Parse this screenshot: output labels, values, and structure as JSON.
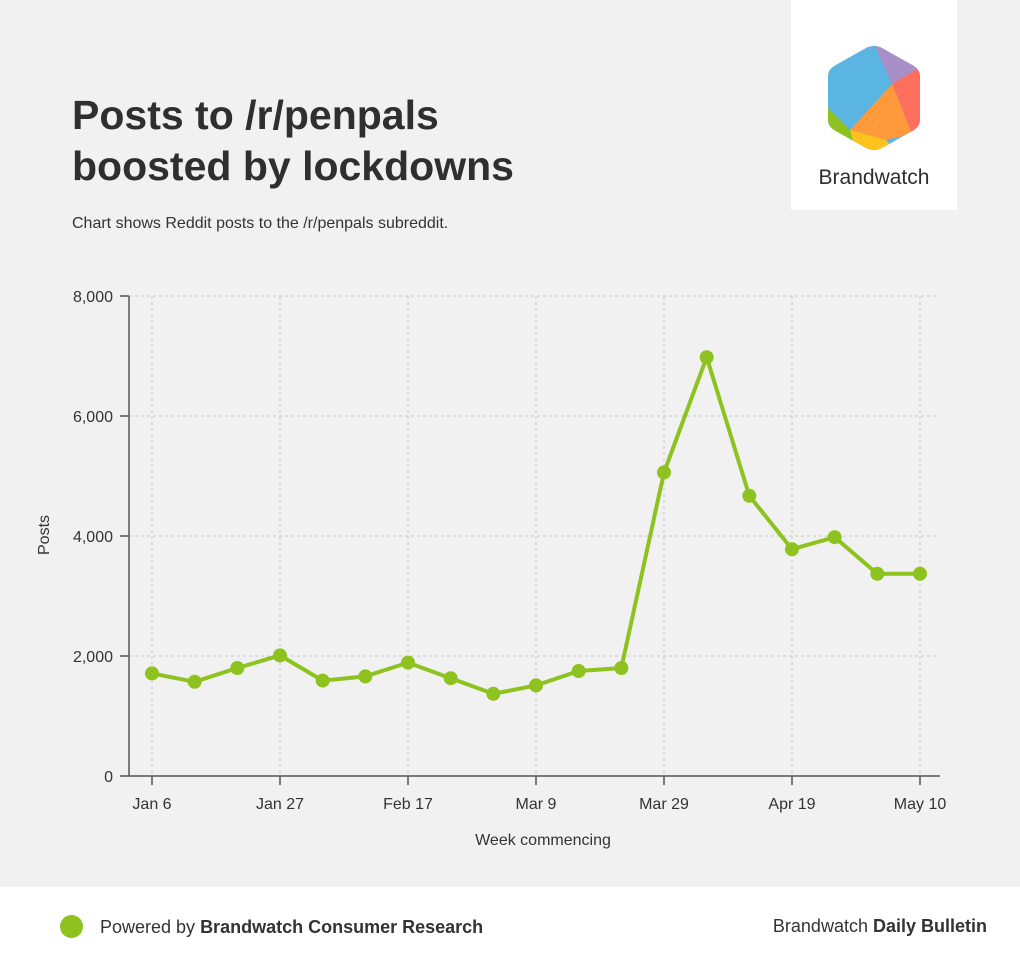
{
  "title_line1": "Posts to /r/penpals",
  "title_line2": "boosted by lockdowns",
  "subtitle": "Chart shows Reddit posts to the /r/penpals subreddit.",
  "logo": {
    "brand": "Brandwatch"
  },
  "colors": {
    "line": "#8dc21f",
    "background": "#f1f1f1",
    "grid": "#c8c8c8"
  },
  "chart_data": {
    "type": "line",
    "title": "Posts to /r/penpals boosted by lockdowns",
    "xlabel": "Week commencing",
    "ylabel": "Posts",
    "ylim": [
      0,
      8000
    ],
    "yticks": [
      0,
      2000,
      4000,
      6000,
      8000
    ],
    "ytick_labels": [
      "0",
      "2,000",
      "4,000",
      "6,000",
      "8,000"
    ],
    "xtick_labels": [
      "Jan 6",
      "Jan 27",
      "Feb 17",
      "Mar 9",
      "Mar 29",
      "Apr 19",
      "May 10"
    ],
    "xtick_indices": [
      0,
      3,
      6,
      9,
      12,
      15,
      18
    ],
    "grid": true,
    "series": [
      {
        "name": "Posts",
        "x": [
          "Jan 6",
          "Jan 13",
          "Jan 20",
          "Jan 27",
          "Feb 3",
          "Feb 10",
          "Feb 17",
          "Feb 24",
          "Mar 2",
          "Mar 9",
          "Mar 16",
          "Mar 23",
          "Mar 29",
          "Apr 5",
          "Apr 12",
          "Apr 19",
          "Apr 26",
          "May 3",
          "May 10"
        ],
        "values": [
          1710,
          1570,
          1800,
          2010,
          1590,
          1660,
          1890,
          1630,
          1370,
          1510,
          1750,
          1800,
          5060,
          6980,
          4670,
          3780,
          3980,
          3370,
          3370
        ]
      }
    ]
  },
  "footer": {
    "powered_prefix": "Powered by ",
    "powered_bold": "Brandwatch Consumer Research",
    "right_prefix": "Brandwatch ",
    "right_bold": "Daily Bulletin"
  }
}
